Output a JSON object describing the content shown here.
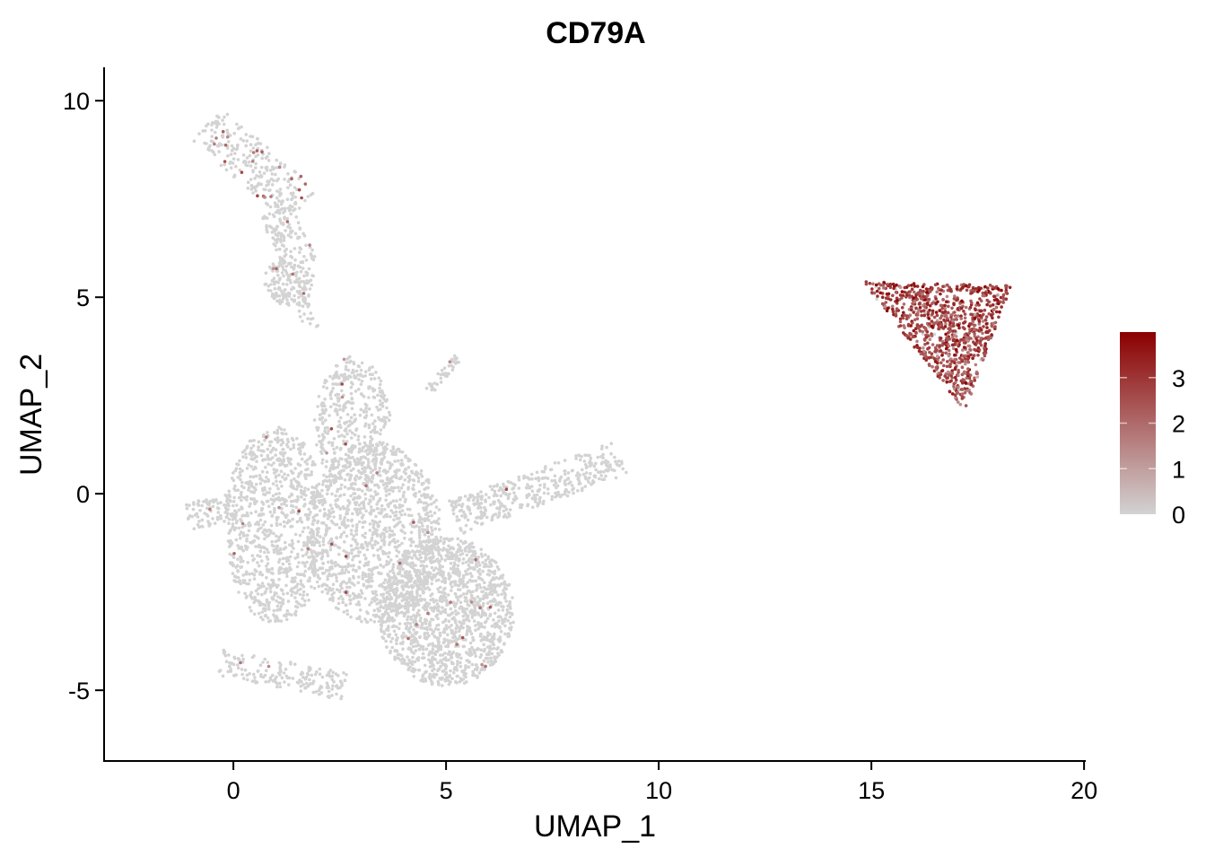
{
  "chart_data": {
    "type": "scatter",
    "title": "CD79A",
    "xlabel": "UMAP_1",
    "ylabel": "UMAP_2",
    "xlim": [
      -3.04,
      20.04
    ],
    "ylim": [
      -6.8,
      10.85
    ],
    "x_ticks": [
      0,
      5,
      10,
      15,
      20
    ],
    "x_tick_labels": [
      "0",
      "5",
      "10",
      "15",
      "20"
    ],
    "y_ticks": [
      -5,
      0,
      5,
      10
    ],
    "y_tick_labels": [
      "-5",
      "0",
      "5",
      "10"
    ],
    "grid": false,
    "legend": {
      "type": "colorbar",
      "placement": "right",
      "range": [
        0,
        4.0
      ],
      "ticks": [
        0,
        1,
        2,
        3
      ],
      "tick_labels": [
        "0",
        "1",
        "2",
        "3"
      ],
      "low_color": "#d3d3d3",
      "high_color": "#8b0000"
    },
    "clusters": [
      {
        "name": "top-left streak",
        "shape": "segment",
        "from": [
          -0.6,
          9.4
        ],
        "to": [
          1.6,
          7.3
        ],
        "width": 0.55,
        "n": 260,
        "expr_frac": 0.1
      },
      {
        "name": "top-left lower",
        "shape": "segment",
        "from": [
          1.0,
          7.2
        ],
        "to": [
          1.6,
          5.8
        ],
        "width": 0.4,
        "n": 120,
        "expr_frac": 0.02
      },
      {
        "name": "top-left blob",
        "shape": "ellipse",
        "center": [
          1.3,
          5.4
        ],
        "radius": [
          0.6,
          0.6
        ],
        "n": 160,
        "expr_frac": 0.04
      },
      {
        "name": "top-left tail",
        "shape": "segment",
        "from": [
          1.5,
          4.9
        ],
        "to": [
          2.0,
          4.2
        ],
        "width": 0.2,
        "n": 25,
        "expr_frac": 0
      },
      {
        "name": "main upper stem",
        "shape": "ellipse",
        "center": [
          2.8,
          1.8
        ],
        "radius": [
          0.9,
          1.7
        ],
        "n": 420,
        "expr_frac": 0.01
      },
      {
        "name": "main left lobe",
        "shape": "ellipse",
        "center": [
          1.0,
          -0.8
        ],
        "radius": [
          1.2,
          2.5
        ],
        "n": 900,
        "expr_frac": 0.01
      },
      {
        "name": "main center",
        "shape": "ellipse",
        "center": [
          3.3,
          -1.0
        ],
        "radius": [
          1.6,
          2.3
        ],
        "n": 1200,
        "expr_frac": 0.008
      },
      {
        "name": "main bottom right",
        "shape": "ellipse",
        "center": [
          5.0,
          -3.0
        ],
        "radius": [
          1.6,
          1.9
        ],
        "n": 1400,
        "expr_frac": 0.008
      },
      {
        "name": "left spur",
        "shape": "segment",
        "from": [
          -1.1,
          -0.6
        ],
        "to": [
          0.0,
          -0.3
        ],
        "width": 0.35,
        "n": 90,
        "expr_frac": 0.02
      },
      {
        "name": "bottom arc",
        "shape": "segment",
        "from": [
          -0.3,
          -4.3
        ],
        "to": [
          2.6,
          -4.9
        ],
        "width": 0.35,
        "n": 180,
        "expr_frac": 0.03
      },
      {
        "name": "right arm",
        "shape": "segment",
        "from": [
          5.2,
          -0.6
        ],
        "to": [
          9.1,
          0.9
        ],
        "width": 0.45,
        "n": 380,
        "expr_frac": 0.005
      },
      {
        "name": "small streak",
        "shape": "segment",
        "from": [
          4.6,
          2.6
        ],
        "to": [
          5.3,
          3.5
        ],
        "width": 0.12,
        "n": 40,
        "expr_frac": 0.03
      },
      {
        "name": "B cells",
        "shape": "triangle",
        "vertices": [
          [
            14.8,
            5.4
          ],
          [
            18.3,
            5.3
          ],
          [
            17.2,
            2.1
          ]
        ],
        "n": 900,
        "expr_frac": 0.95,
        "expr_mean": 2.6
      }
    ]
  }
}
